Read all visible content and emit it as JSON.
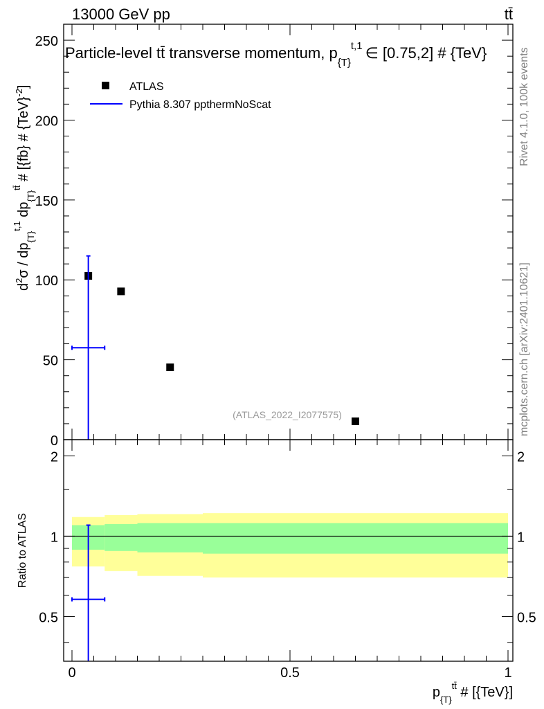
{
  "header": {
    "energy_label": "13000 GeV pp",
    "process_label": "tt̄"
  },
  "side_labels": {
    "rivet": "Rivet 4.1.0,  100k events",
    "mcplots": "mcplots.cern.ch [arXiv:2401.10621]"
  },
  "colors": {
    "data": "#000000",
    "mc": "#0000ff",
    "band_inner": "#99ff99",
    "band_outer": "#ffff99",
    "watermark": "#999999",
    "side_text": "#808080"
  },
  "chart_data": [
    {
      "type": "scatter",
      "panel": "main",
      "title": "Particle-level tt̄ transverse momentum, p{T}t,1 ∈ [0.75,2] # {TeV}",
      "title_parts": {
        "main": "Particle-level tt̄ transverse momentum, p",
        "sub": "{T}",
        "sup": "t,1",
        "tail": "∈ [0.75,2] # {TeV}"
      },
      "ylabel": "d²σ / dp{T}t,1 dp{T}tt̄ # [{fb} # {TeV}-2]",
      "ylabel_parts": {
        "d": "d",
        "sup2": "2",
        "sigma": "σ / dp",
        "sub1": "{T}",
        "sup1": "t,1",
        "dp": " dp",
        "sub2": "{T}",
        "sup2b": "tt̄",
        "unit": " # [{fb} # {TeV}",
        "unit_sup": "-2",
        "close": "]"
      },
      "watermark": "(ATLAS_2022_I2077575)",
      "xlim": [
        0,
        1
      ],
      "ylim": [
        0,
        260
      ],
      "y_ticks": [
        0,
        50,
        100,
        150,
        200,
        250
      ],
      "y_tick_labels": [
        "0",
        "50",
        "100",
        "150",
        "200",
        "250"
      ],
      "legend": {
        "placement": "top-left",
        "entries": [
          "ATLAS",
          "Pythia 8.307 ppthermNoScat"
        ]
      },
      "series": [
        {
          "name": "ATLAS",
          "marker": "square",
          "x": [
            0.0375,
            0.1125,
            0.225,
            0.65
          ],
          "y": [
            102.5,
            92.8,
            45.3,
            11.5
          ]
        },
        {
          "name": "Pythia 8.307 ppthermNoScat",
          "marker": "cross",
          "x": [
            0.0375
          ],
          "y": [
            57.5
          ],
          "xerr_low": [
            0.0375
          ],
          "xerr_high": [
            0.0375
          ],
          "yerr_low": [
            57.5
          ],
          "yerr_high": [
            57.5
          ]
        }
      ]
    },
    {
      "type": "line",
      "panel": "ratio",
      "ylabel": "Ratio to ATLAS",
      "xlabel": "p{T}tt̄ # [{TeV}]",
      "xlabel_parts": {
        "p": "p",
        "sub": "{T}",
        "sup": "tt̄",
        "tail": " # [{TeV}]"
      },
      "xlim": [
        0,
        1
      ],
      "ylim": [
        0.34,
        2.3
      ],
      "x_ticks": [
        0,
        0.5,
        1
      ],
      "x_tick_labels": [
        "0",
        "0.5",
        "1"
      ],
      "y_ticks": [
        0.5,
        1,
        2
      ],
      "y_tick_labels": [
        "0.5",
        "1",
        "2"
      ],
      "reference_line": 1,
      "bands": [
        {
          "x_low": 0,
          "x_high": 0.075,
          "inner": [
            0.89,
            1.1
          ],
          "outer": [
            0.77,
            1.18
          ]
        },
        {
          "x_low": 0.075,
          "x_high": 0.15,
          "inner": [
            0.88,
            1.11
          ],
          "outer": [
            0.74,
            1.2
          ]
        },
        {
          "x_low": 0.15,
          "x_high": 0.3,
          "inner": [
            0.87,
            1.12
          ],
          "outer": [
            0.71,
            1.21
          ]
        },
        {
          "x_low": 0.3,
          "x_high": 1.0,
          "inner": [
            0.86,
            1.12
          ],
          "outer": [
            0.7,
            1.22
          ]
        }
      ],
      "series": [
        {
          "name": "Pythia 8.307 ppthermNoScat",
          "x": [
            0.0375
          ],
          "y": [
            0.58
          ],
          "xerr_low": [
            0.0375
          ],
          "xerr_high": [
            0.0375
          ],
          "yerr_low": [
            0.58
          ],
          "yerr_high": [
            0.52
          ]
        }
      ]
    }
  ]
}
